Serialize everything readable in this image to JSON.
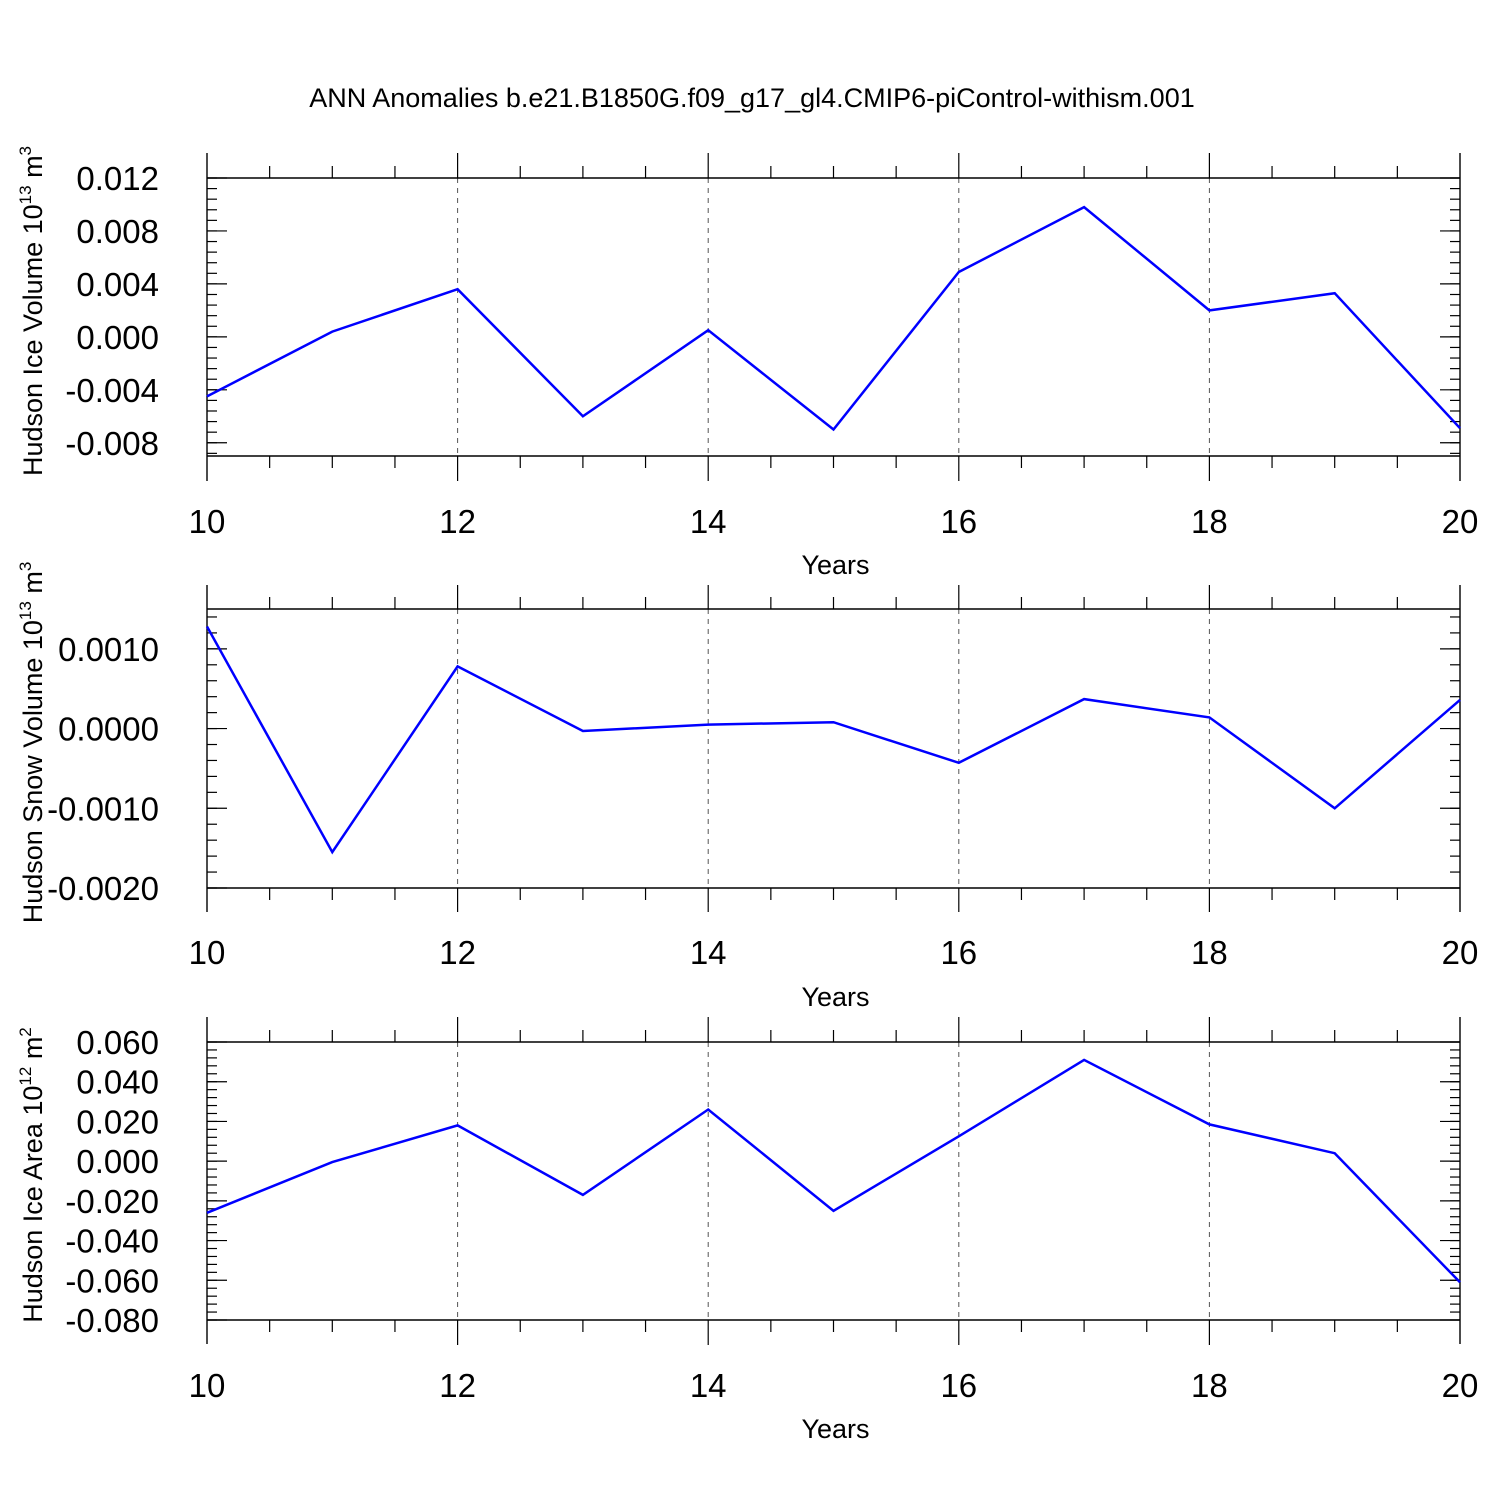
{
  "title": "ANN Anomalies b.e21.B1850G.f09_g17_gl4.CMIP6-piControl-withism.001",
  "colors": {
    "line": "#0000ff",
    "axis": "#000000",
    "grid": "#555555"
  },
  "chart_data": [
    {
      "type": "line",
      "xlabel": "Years",
      "ylabel_main": "Hudson Ice Volume 10",
      "ylabel_exp": "13",
      "ylabel_unit": " m",
      "ylabel_unit_exp": "3",
      "x": [
        10,
        11,
        12,
        13,
        14,
        15,
        16,
        17,
        18,
        19,
        20
      ],
      "xlim": [
        10,
        20
      ],
      "x_ticks": [
        "10",
        "12",
        "14",
        "16",
        "18",
        "20"
      ],
      "ylim": [
        -0.009,
        0.012
      ],
      "y_ticks": [
        {
          "value": 0.012,
          "label": "0.012"
        },
        {
          "value": 0.008,
          "label": "0.008"
        },
        {
          "value": 0.004,
          "label": "0.004"
        },
        {
          "value": 0.0,
          "label": "0.000"
        },
        {
          "value": -0.004,
          "label": "-0.004"
        },
        {
          "value": -0.008,
          "label": "-0.008"
        }
      ],
      "y_minor_step": 0.0008,
      "grid": "vertical dashed at major x ticks",
      "series": [
        {
          "values": [
            -0.0045,
            0.0004,
            0.0036,
            -0.006,
            0.0005,
            -0.007,
            0.0049,
            0.0098,
            0.002,
            0.0033,
            -0.0069
          ]
        }
      ]
    },
    {
      "type": "line",
      "xlabel": "Years",
      "ylabel_main": "Hudson Snow Volume 10",
      "ylabel_exp": "13",
      "ylabel_unit": " m",
      "ylabel_unit_exp": "3",
      "x": [
        10,
        11,
        12,
        13,
        14,
        15,
        16,
        17,
        18,
        19,
        20
      ],
      "xlim": [
        10,
        20
      ],
      "x_ticks": [
        "10",
        "12",
        "14",
        "16",
        "18",
        "20"
      ],
      "ylim": [
        -0.002,
        0.0015
      ],
      "y_ticks": [
        {
          "value": 0.001,
          "label": "0.0010"
        },
        {
          "value": 0.0,
          "label": "0.0000"
        },
        {
          "value": -0.001,
          "label": "-0.0010"
        },
        {
          "value": -0.002,
          "label": "-0.0020"
        }
      ],
      "y_minor_step": 0.0002,
      "grid": "vertical dashed at major x ticks",
      "series": [
        {
          "values": [
            0.00128,
            -0.00155,
            0.00078,
            -3e-05,
            5e-05,
            8e-05,
            -0.00043,
            0.00037,
            0.00014,
            -0.001,
            0.00036
          ]
        }
      ]
    },
    {
      "type": "line",
      "xlabel": "Years",
      "ylabel_main": "Hudson Ice Area 10",
      "ylabel_exp": "12",
      "ylabel_unit": " m",
      "ylabel_unit_exp": "2",
      "x": [
        10,
        11,
        12,
        13,
        14,
        15,
        16,
        17,
        18,
        19,
        20
      ],
      "xlim": [
        10,
        20
      ],
      "x_ticks": [
        "10",
        "12",
        "14",
        "16",
        "18",
        "20"
      ],
      "ylim": [
        -0.08,
        0.06
      ],
      "y_ticks": [
        {
          "value": 0.06,
          "label": "0.060"
        },
        {
          "value": 0.04,
          "label": "0.040"
        },
        {
          "value": 0.02,
          "label": "0.020"
        },
        {
          "value": 0.0,
          "label": "0.000"
        },
        {
          "value": -0.02,
          "label": "-0.020"
        },
        {
          "value": -0.04,
          "label": "-0.040"
        },
        {
          "value": -0.06,
          "label": "-0.060"
        },
        {
          "value": -0.08,
          "label": "-0.080"
        }
      ],
      "y_minor_step": 0.004,
      "grid": "vertical dashed at major x ticks",
      "series": [
        {
          "values": [
            -0.026,
            -0.0005,
            0.018,
            -0.017,
            0.026,
            -0.025,
            0.0125,
            0.051,
            0.0185,
            0.004,
            -0.061
          ]
        }
      ]
    }
  ]
}
